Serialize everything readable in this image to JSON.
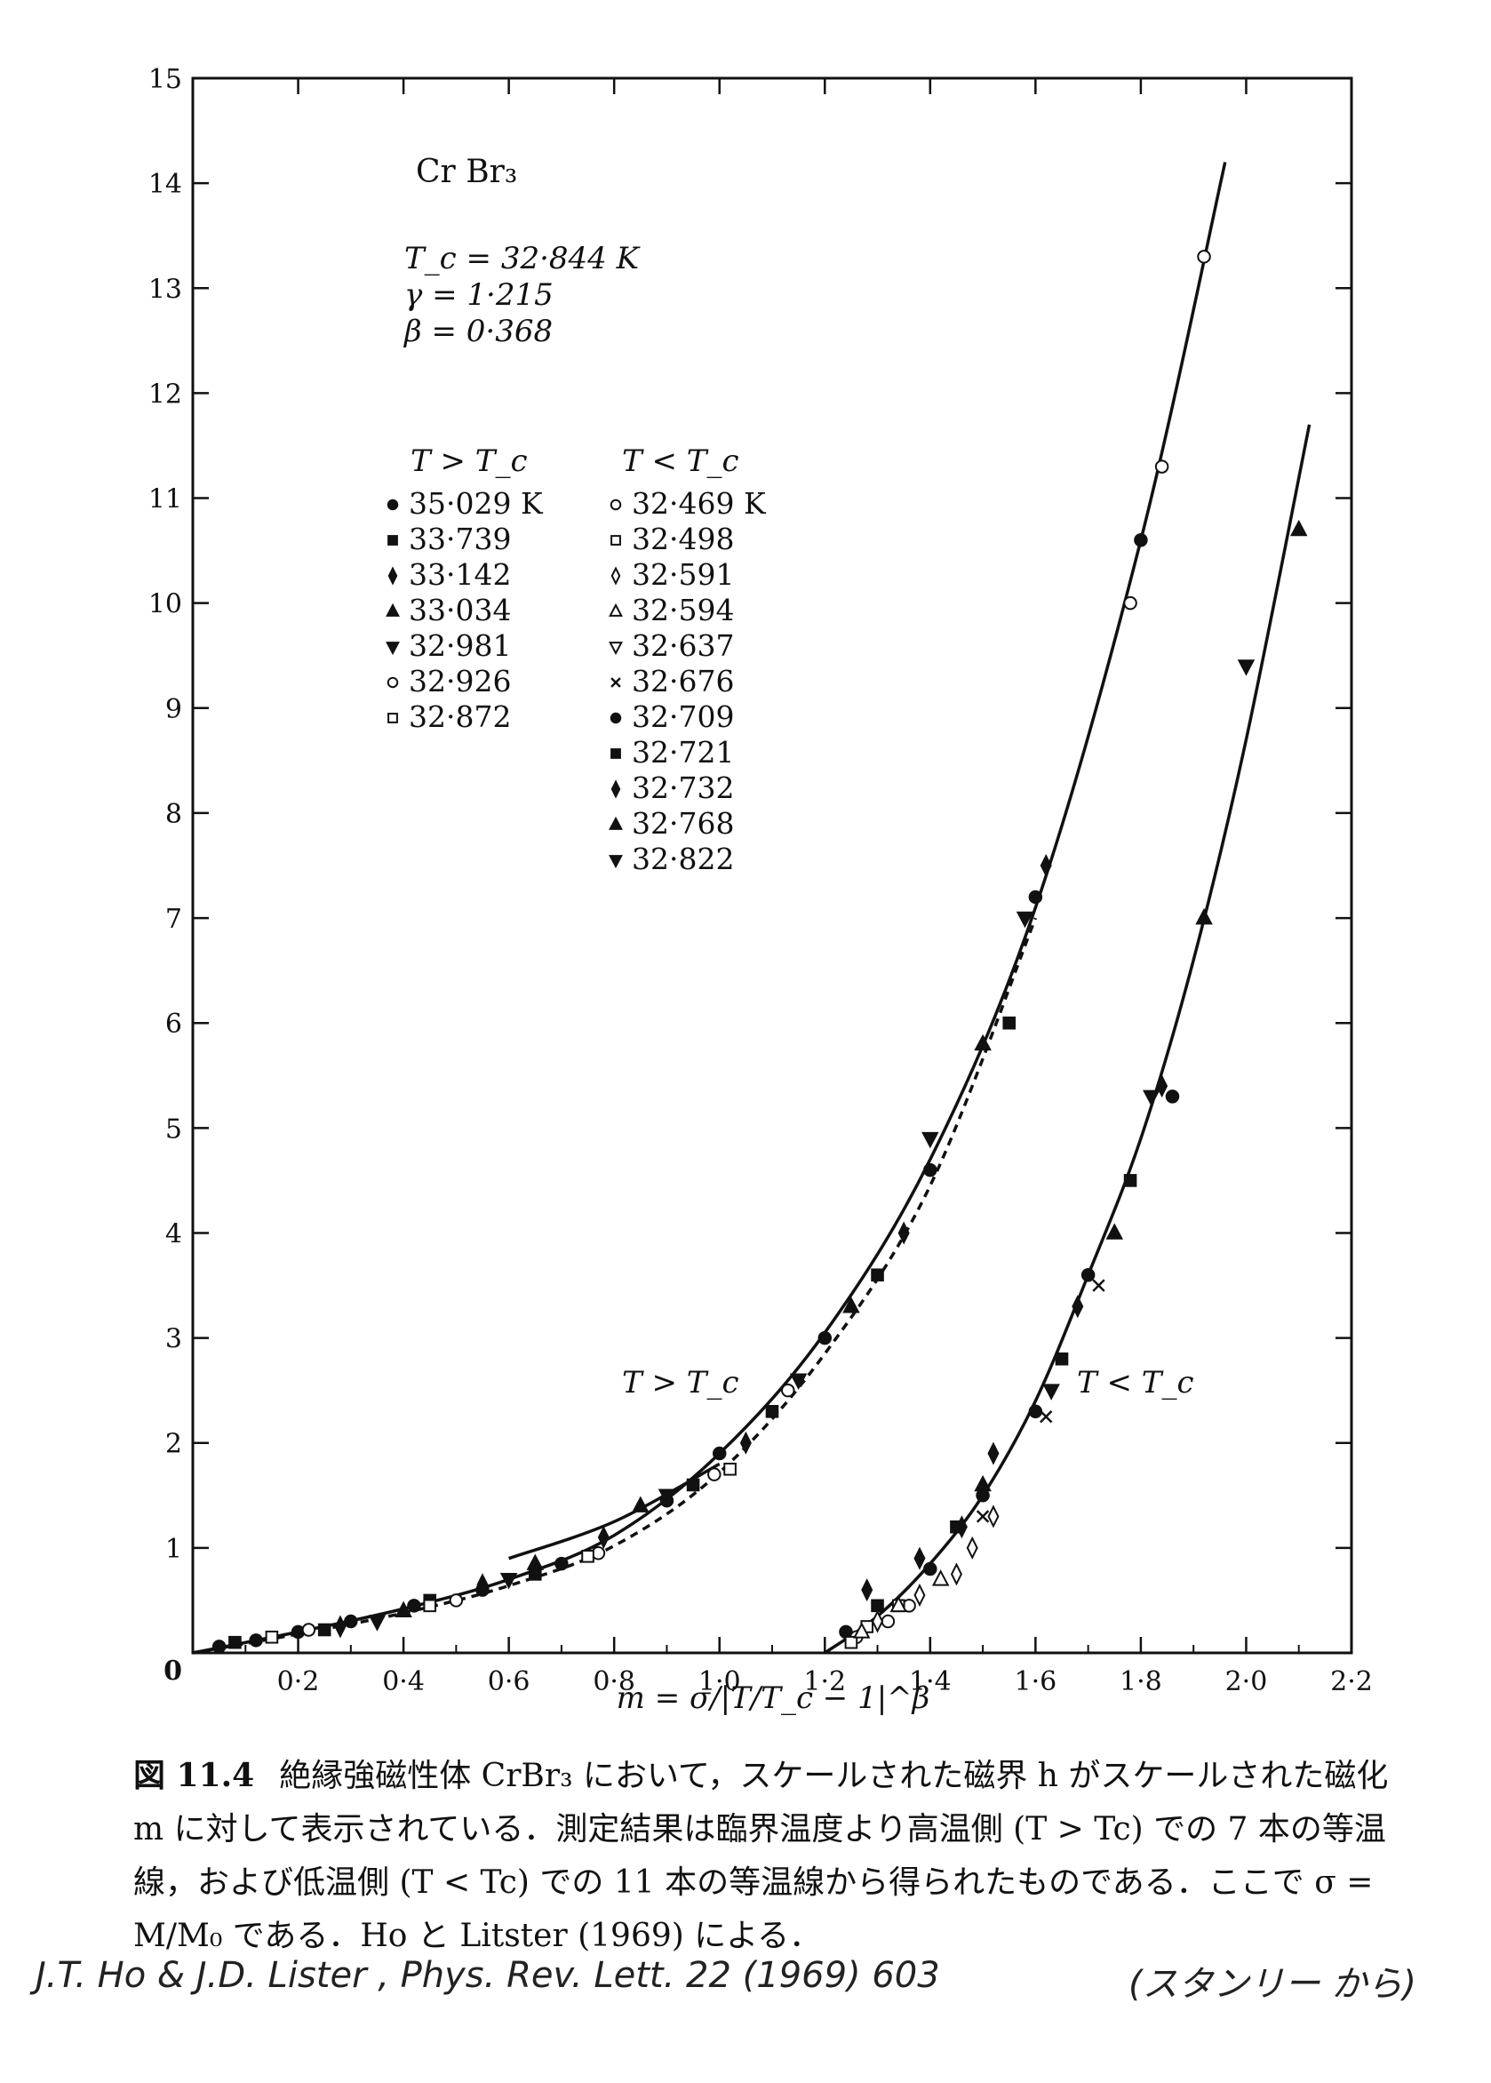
{
  "chart_data": {
    "type": "scatter",
    "title": "",
    "xlabel": "m = σ/|T/T_c − 1|^β",
    "ylabel": "",
    "xlim": [
      0,
      2.2
    ],
    "ylim": [
      0,
      15
    ],
    "x_ticks": [
      "0·2",
      "0·4",
      "0·6",
      "0·8",
      "1·0",
      "1·2",
      "1·4",
      "1·6",
      "1·8",
      "2·0",
      "2·2"
    ],
    "x_tick_values": [
      0.2,
      0.4,
      0.6,
      0.8,
      1.0,
      1.2,
      1.4,
      1.6,
      1.8,
      2.0,
      2.2
    ],
    "y_ticks": [
      "1",
      "2",
      "3",
      "4",
      "5",
      "6",
      "7",
      "8",
      "9",
      "10",
      "11",
      "12",
      "13",
      "14",
      "15"
    ],
    "y_tick_values": [
      1,
      2,
      3,
      4,
      5,
      6,
      7,
      8,
      9,
      10,
      11,
      12,
      13,
      14,
      15
    ],
    "origin_label": "0",
    "grid": false,
    "annotations": {
      "material": "Cr Br₃",
      "tc": "T_c = 32·844  K",
      "gamma": "γ =  1·215",
      "beta": "β =  0·368",
      "above_header": "T > T_c",
      "below_header": "T < T_c",
      "above_curve_label": "T > T_c",
      "below_curve_label": "T < T_c"
    },
    "legend_above": [
      {
        "marker": "filled-circle",
        "label": "35·029  K"
      },
      {
        "marker": "filled-square",
        "label": "33·739"
      },
      {
        "marker": "filled-diamond",
        "label": "33·142"
      },
      {
        "marker": "filled-triangle-up",
        "label": "33·034"
      },
      {
        "marker": "filled-triangle-down",
        "label": "32·981"
      },
      {
        "marker": "open-circle",
        "label": "32·926"
      },
      {
        "marker": "open-square",
        "label": "32·872"
      }
    ],
    "legend_below": [
      {
        "marker": "open-circle",
        "label": "32·469  K"
      },
      {
        "marker": "open-square",
        "label": "32·498"
      },
      {
        "marker": "open-diamond",
        "label": "32·591"
      },
      {
        "marker": "open-triangle-up",
        "label": "32·594"
      },
      {
        "marker": "open-triangle-down",
        "label": "32·637"
      },
      {
        "marker": "cross",
        "label": "32·676"
      },
      {
        "marker": "filled-circle",
        "label": "32·709"
      },
      {
        "marker": "filled-square",
        "label": "32·721"
      },
      {
        "marker": "filled-diamond",
        "label": "32·732"
      },
      {
        "marker": "filled-triangle-up",
        "label": "32·768"
      },
      {
        "marker": "filled-triangle-down",
        "label": "32·822"
      }
    ],
    "curves": [
      {
        "name": "T > T_c",
        "style": "solid",
        "x": [
          0.0,
          0.2,
          0.4,
          0.6,
          0.8,
          1.0,
          1.2,
          1.4,
          1.6,
          1.8,
          1.96
        ],
        "y": [
          0.0,
          0.2,
          0.42,
          0.7,
          1.12,
          1.9,
          3.05,
          4.7,
          7.1,
          10.6,
          14.2
        ]
      },
      {
        "name": "",
        "style": "dashed",
        "x": [
          0.0,
          0.2,
          0.4,
          0.6,
          0.8,
          1.0,
          1.2,
          1.4,
          1.6
        ],
        "y": [
          0.0,
          0.18,
          0.38,
          0.64,
          1.02,
          1.72,
          2.85,
          4.45,
          7.0
        ]
      },
      {
        "name": "",
        "style": "solid",
        "x": [
          0.6,
          0.8,
          1.0
        ],
        "y": [
          0.9,
          1.25,
          1.8
        ]
      },
      {
        "name": "T < T_c",
        "style": "solid",
        "x": [
          1.2,
          1.3,
          1.4,
          1.5,
          1.6,
          1.7,
          1.8,
          1.9,
          2.0,
          2.12
        ],
        "y": [
          0.0,
          0.35,
          0.85,
          1.5,
          2.4,
          3.6,
          4.9,
          6.6,
          8.7,
          11.7
        ]
      }
    ],
    "series": [
      {
        "marker": "filled-circle",
        "x": [
          0.05,
          0.12,
          0.2,
          0.3,
          0.42,
          0.55,
          0.7,
          0.9,
          1.0,
          1.2,
          1.4,
          1.6,
          1.8,
          1.24,
          1.4,
          1.5,
          1.6,
          1.7,
          1.86
        ],
        "y": [
          0.06,
          0.12,
          0.2,
          0.3,
          0.45,
          0.6,
          0.85,
          1.45,
          1.9,
          3.0,
          4.6,
          7.2,
          10.6,
          0.2,
          0.8,
          1.5,
          2.3,
          3.6,
          5.3
        ]
      },
      {
        "marker": "filled-square",
        "x": [
          0.08,
          0.25,
          0.45,
          0.65,
          0.95,
          1.1,
          1.3,
          1.55,
          1.3,
          1.45,
          1.65,
          1.78
        ],
        "y": [
          0.1,
          0.22,
          0.5,
          0.75,
          1.6,
          2.3,
          3.6,
          6.0,
          0.45,
          1.2,
          2.8,
          4.5
        ]
      },
      {
        "marker": "filled-diamond",
        "x": [
          0.28,
          0.55,
          0.78,
          1.05,
          1.35,
          1.62,
          1.28,
          1.38,
          1.46,
          1.52,
          1.68,
          1.84
        ],
        "y": [
          0.25,
          0.65,
          1.1,
          2.0,
          4.0,
          7.5,
          0.6,
          0.9,
          1.2,
          1.9,
          3.3,
          5.4
        ]
      },
      {
        "marker": "filled-triangle-up",
        "x": [
          0.4,
          0.65,
          0.85,
          1.25,
          1.5,
          1.5,
          1.75,
          1.92,
          2.1
        ],
        "y": [
          0.4,
          0.85,
          1.4,
          3.3,
          5.8,
          1.6,
          4.0,
          7.0,
          10.7
        ]
      },
      {
        "marker": "filled-triangle-down",
        "x": [
          0.35,
          0.6,
          0.9,
          1.15,
          1.4,
          1.58,
          1.63,
          1.82,
          2.0
        ],
        "y": [
          0.3,
          0.7,
          1.5,
          2.6,
          4.9,
          7.0,
          2.5,
          5.3,
          9.4
        ]
      },
      {
        "marker": "open-circle",
        "x": [
          0.22,
          0.5,
          0.77,
          0.99,
          1.13,
          1.78,
          1.84,
          1.92,
          1.26,
          1.32,
          1.36
        ],
        "y": [
          0.22,
          0.5,
          0.95,
          1.7,
          2.5,
          10.0,
          11.3,
          13.3,
          0.15,
          0.3,
          0.45
        ]
      },
      {
        "marker": "open-square",
        "x": [
          0.15,
          0.45,
          0.75,
          1.02,
          1.25,
          1.28,
          1.34
        ],
        "y": [
          0.15,
          0.45,
          0.92,
          1.75,
          0.1,
          0.25,
          0.45
        ]
      },
      {
        "marker": "open-diamond",
        "x": [
          1.3,
          1.38,
          1.45,
          1.48,
          1.52
        ],
        "y": [
          0.3,
          0.55,
          0.75,
          1.0,
          1.3
        ]
      },
      {
        "marker": "open-triangle-up",
        "x": [
          1.27,
          1.34,
          1.42
        ],
        "y": [
          0.2,
          0.45,
          0.7
        ]
      },
      {
        "marker": "cross",
        "x": [
          1.5,
          1.62,
          1.72
        ],
        "y": [
          1.3,
          2.25,
          3.5
        ]
      }
    ]
  },
  "caption": {
    "fig_label": "図 11.4",
    "text": "絶縁強磁性体 CrBr₃ において，スケールされた磁界 h がスケールされた磁化 m に対して表示されている．測定結果は臨界温度より高温側 (T > Tc) での 7 本の等温線，および低温側 (T < Tc) での 11 本の等温線から得られたものである．ここで σ = M/M₀ である．Ho と Litster (1969) による．"
  },
  "handnote": {
    "left": "J.T. Ho & J.D. Lister , Phys. Rev. Lett. 22 (1969) 603",
    "right": "(スタンリー から)"
  }
}
